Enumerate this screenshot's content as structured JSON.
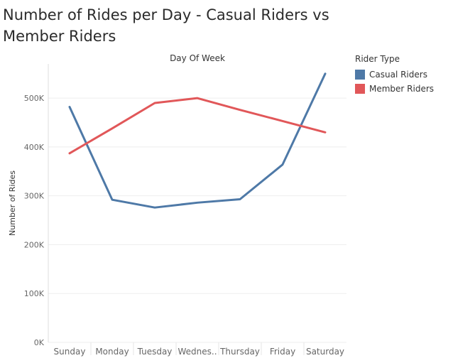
{
  "title": "Number of Rides per Day - Casual Riders vs Member Riders",
  "colors": {
    "casual": "#4e79a7",
    "member": "#e15759",
    "grid": "#eeeeee",
    "axis_text": "#666666"
  },
  "legend": {
    "title": "Rider Type",
    "items": [
      {
        "label": "Casual Riders",
        "color": "#4e79a7"
      },
      {
        "label": "Member Riders",
        "color": "#e15759"
      }
    ]
  },
  "chart_data": {
    "type": "line",
    "xlabel": "Day Of Week",
    "ylabel": "Number of Rides",
    "categories": [
      "Sunday",
      "Monday",
      "Tuesday",
      "Wednes..",
      "Thursday",
      "Friday",
      "Saturday"
    ],
    "yticks": [
      0,
      100000,
      200000,
      300000,
      400000,
      500000
    ],
    "ytick_labels": [
      "0K",
      "100K",
      "200K",
      "300K",
      "400K",
      "500K"
    ],
    "ylim": [
      0,
      570000
    ],
    "grid": true,
    "legend_position": "right",
    "series": [
      {
        "name": "Casual Riders",
        "color": "#4e79a7",
        "values": [
          482000,
          292000,
          276000,
          286000,
          293000,
          364000,
          550000
        ]
      },
      {
        "name": "Member Riders",
        "color": "#e15759",
        "values": [
          387000,
          438000,
          490000,
          500000,
          476000,
          453000,
          430000
        ]
      }
    ]
  }
}
